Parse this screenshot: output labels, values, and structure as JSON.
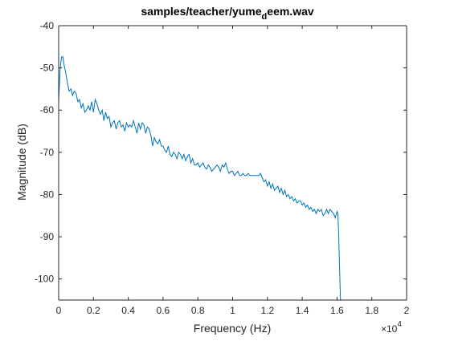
{
  "chart_data": {
    "type": "line",
    "title": {
      "main": "samples/teacher/yume",
      "subscript": "d",
      "suffix": "eem.wav"
    },
    "xlabel": "Frequency (Hz)",
    "ylabel": "Magnitude (dB)",
    "x_exponent_label": {
      "base": "×10",
      "exponent": "4"
    },
    "xlim": [
      0,
      20000
    ],
    "ylim": [
      -105,
      -40
    ],
    "x_ticks": [
      0,
      2000,
      4000,
      6000,
      8000,
      10000,
      12000,
      14000,
      16000,
      18000,
      20000
    ],
    "x_tick_labels": [
      "0",
      "0.2",
      "0.4",
      "0.6",
      "0.8",
      "1",
      "1.2",
      "1.4",
      "1.6",
      "1.8",
      "2"
    ],
    "y_ticks": [
      -40,
      -50,
      -60,
      -70,
      -80,
      -90,
      -100
    ],
    "y_tick_labels": [
      "-40",
      "-50",
      "-60",
      "-70",
      "-80",
      "-90",
      "-100"
    ],
    "grid": false,
    "line_color": "#0072BD",
    "series": [
      {
        "x": [
          0,
          80,
          160,
          240,
          320,
          400,
          500,
          600,
          700,
          800,
          900,
          1000,
          1100,
          1200,
          1300,
          1400,
          1500,
          1600,
          1700,
          1800,
          1900,
          2000,
          2100,
          2200,
          2300,
          2400,
          2500,
          2600,
          2700,
          2800,
          2900,
          3000,
          3100,
          3200,
          3300,
          3400,
          3500,
          3600,
          3700,
          3800,
          3900,
          4000,
          4100,
          4200,
          4300,
          4400,
          4500,
          4600,
          4700,
          4800,
          4900,
          5000,
          5100,
          5200,
          5300,
          5400,
          5500,
          5600,
          5700,
          5800,
          5900,
          6000,
          6100,
          6200,
          6300,
          6400,
          6500,
          6600,
          6700,
          6800,
          6900,
          7000,
          7100,
          7200,
          7300,
          7400,
          7500,
          7600,
          7700,
          7800,
          7900,
          8000,
          8100,
          8200,
          8300,
          8400,
          8500,
          8600,
          8700,
          8800,
          8900,
          9000,
          9100,
          9200,
          9300,
          9400,
          9500,
          9600,
          9700,
          9800,
          9900,
          10000,
          10100,
          10200,
          10300,
          10400,
          10500,
          10600,
          10700,
          10800,
          10900,
          11000,
          11100,
          11200,
          11300,
          11400,
          11500,
          11600,
          11700,
          11800,
          11900,
          12000,
          12100,
          12200,
          12300,
          12400,
          12500,
          12600,
          12700,
          12800,
          12900,
          13000,
          13100,
          13200,
          13300,
          13400,
          13500,
          13600,
          13700,
          13800,
          13900,
          14000,
          14100,
          14200,
          14300,
          14400,
          14500,
          14600,
          14700,
          14800,
          14900,
          15000,
          15100,
          15200,
          15300,
          15400,
          15500,
          15600,
          15700,
          15800,
          15900,
          16000,
          16050,
          16100,
          16150,
          16200
        ],
        "y": [
          -58.0,
          -50.5,
          -47.5,
          -47.3,
          -49.5,
          -51.0,
          -53.5,
          -55.5,
          -55.0,
          -56.5,
          -55.5,
          -56.0,
          -58.0,
          -57.5,
          -59.5,
          -58.5,
          -60.5,
          -60.0,
          -59.0,
          -60.0,
          -58.0,
          -60.5,
          -57.5,
          -58.5,
          -60.0,
          -61.0,
          -60.0,
          -62.5,
          -60.5,
          -62.0,
          -61.5,
          -64.0,
          -63.0,
          -62.5,
          -64.5,
          -63.0,
          -62.5,
          -64.0,
          -63.5,
          -65.0,
          -63.0,
          -64.0,
          -63.5,
          -64.0,
          -62.5,
          -64.0,
          -65.5,
          -63.0,
          -64.5,
          -63.0,
          -63.5,
          -65.5,
          -64.0,
          -64.5,
          -66.0,
          -68.5,
          -66.5,
          -67.5,
          -68.0,
          -67.0,
          -68.5,
          -68.5,
          -69.5,
          -70.0,
          -68.5,
          -70.5,
          -71.0,
          -70.0,
          -70.5,
          -71.5,
          -70.0,
          -70.5,
          -71.5,
          -70.5,
          -72.0,
          -71.0,
          -70.5,
          -72.5,
          -71.5,
          -73.0,
          -73.0,
          -72.5,
          -73.5,
          -73.0,
          -72.5,
          -73.5,
          -74.0,
          -73.0,
          -73.5,
          -74.5,
          -74.0,
          -73.5,
          -73.0,
          -73.5,
          -74.5,
          -73.0,
          -73.5,
          -72.5,
          -74.0,
          -75.0,
          -74.5,
          -74.5,
          -75.5,
          -75.0,
          -74.5,
          -75.5,
          -75.5,
          -75.0,
          -75.5,
          -75.5,
          -75.0,
          -75.5,
          -75.5,
          -75.5,
          -75.5,
          -75.5,
          -75.5,
          -75.0,
          -76.0,
          -77.0,
          -76.5,
          -78.0,
          -77.0,
          -78.5,
          -77.5,
          -79.0,
          -78.5,
          -78.0,
          -79.5,
          -78.5,
          -80.0,
          -79.0,
          -80.5,
          -80.0,
          -81.0,
          -80.5,
          -81.5,
          -81.0,
          -82.0,
          -81.5,
          -81.5,
          -82.5,
          -82.0,
          -83.0,
          -82.5,
          -83.5,
          -83.0,
          -84.0,
          -83.5,
          -84.5,
          -83.5,
          -84.0,
          -83.5,
          -85.0,
          -84.5,
          -83.5,
          -84.5,
          -83.5,
          -84.0,
          -84.5,
          -85.5,
          -84.0,
          -84.5,
          -90.0,
          -98.0,
          -105.0
        ]
      }
    ]
  }
}
